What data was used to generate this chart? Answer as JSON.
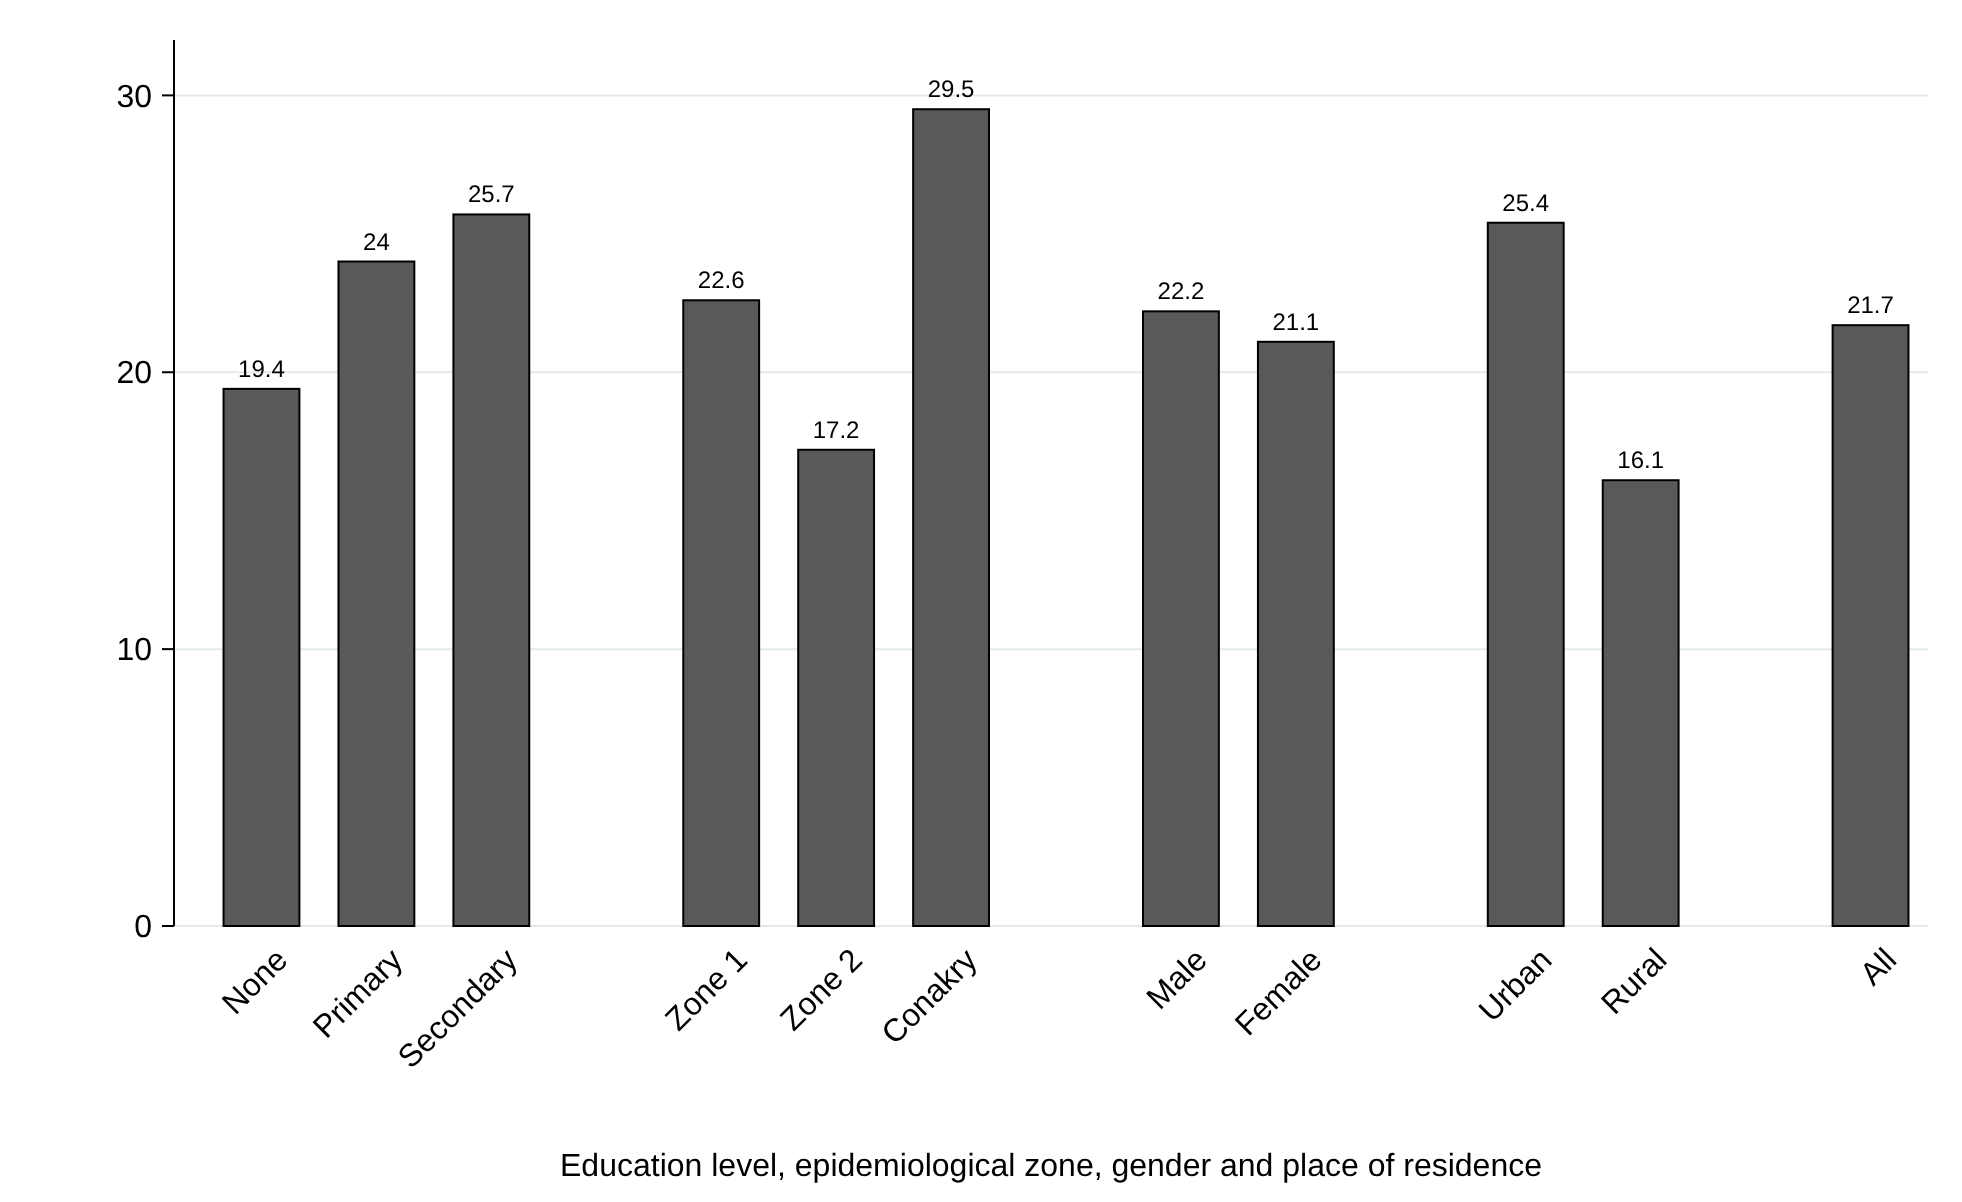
{
  "chart_data": {
    "type": "bar",
    "xlabel": "Education level, epidemiological zone, gender and place of residence",
    "categories": [
      "None",
      "Primary",
      "Secondary",
      null,
      "Zone 1",
      "Zone 2",
      "Conakry",
      null,
      "Male",
      "Female",
      null,
      "Urban",
      "Rural",
      null,
      "All"
    ],
    "values": [
      19.4,
      24,
      25.7,
      null,
      22.6,
      17.2,
      29.5,
      null,
      22.2,
      21.1,
      null,
      25.4,
      16.1,
      null,
      21.7
    ],
    "color": "#595959",
    "data_labels": true,
    "ylim": [
      0,
      32
    ],
    "yticks": [
      0,
      10,
      20,
      30
    ],
    "grid": "y"
  }
}
